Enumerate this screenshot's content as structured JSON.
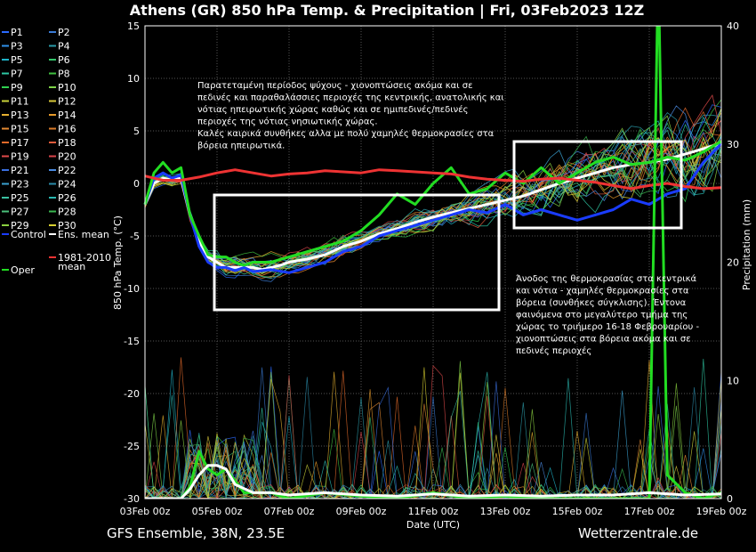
{
  "chart_data": {
    "type": "line",
    "title": "Athens  (GR)  850 hPa Temp. & Precipitation | Fri, 03Feb2023 12Z",
    "xlabel": "Date (UTC)",
    "ylabel": "850 hPa Temp. (°C)",
    "y2label": "Precipitation (mm)",
    "ylim": [
      -30,
      15
    ],
    "y2lim": [
      0,
      40
    ],
    "x_ticks": [
      "03Feb 00z",
      "05Feb 00z",
      "07Feb 00z",
      "09Feb 00z",
      "11Feb 00z",
      "13Feb 00z",
      "15Feb 00z",
      "17Feb 00z",
      "19Feb 00z"
    ],
    "y_ticks": [
      15,
      10,
      5,
      0,
      -5,
      -10,
      -15,
      -20,
      -25,
      -30
    ],
    "y2_ticks": [
      40,
      30,
      20,
      10,
      0
    ],
    "x_range_days": [
      0,
      16
    ],
    "grid": true,
    "legend_position": "left",
    "legend": [
      {
        "label": "P1",
        "color": "#2a6aff"
      },
      {
        "label": "P2",
        "color": "#3a7bd5"
      },
      {
        "label": "P3",
        "color": "#2f8fe8"
      },
      {
        "label": "P4",
        "color": "#2a9aa8"
      },
      {
        "label": "P5",
        "color": "#1fb3c9"
      },
      {
        "label": "P6",
        "color": "#33c56a"
      },
      {
        "label": "P7",
        "color": "#2ec7a3"
      },
      {
        "label": "P8",
        "color": "#3fbf3f"
      },
      {
        "label": "P9",
        "color": "#2fd050"
      },
      {
        "label": "P10",
        "color": "#7ed348"
      },
      {
        "label": "P11",
        "color": "#c9d23a"
      },
      {
        "label": "P12",
        "color": "#d8c83a"
      },
      {
        "label": "P13",
        "color": "#e5b030"
      },
      {
        "label": "P14",
        "color": "#e59a2a"
      },
      {
        "label": "P15",
        "color": "#e58a32"
      },
      {
        "label": "P16",
        "color": "#d97a28"
      },
      {
        "label": "P17",
        "color": "#e56a2a"
      },
      {
        "label": "P18",
        "color": "#dd5a3a"
      },
      {
        "label": "P19",
        "color": "#e04a4a"
      },
      {
        "label": "P20",
        "color": "#d8444a"
      },
      {
        "label": "P21",
        "color": "#3a6fe0"
      },
      {
        "label": "P22",
        "color": "#4a8ae0"
      },
      {
        "label": "P23",
        "color": "#3aa0d0"
      },
      {
        "label": "P24",
        "color": "#2a8aa8"
      },
      {
        "label": "P25",
        "color": "#3ac0a0"
      },
      {
        "label": "P26",
        "color": "#2ab8b0"
      },
      {
        "label": "P27",
        "color": "#4ac07a"
      },
      {
        "label": "P28",
        "color": "#3ab850"
      },
      {
        "label": "P29",
        "color": "#8ad040"
      },
      {
        "label": "P30",
        "color": "#d8d030"
      },
      {
        "label": "Control",
        "color": "#1a3cff"
      },
      {
        "label": "Ens. mean",
        "color": "#ffffff"
      },
      {
        "label": "Oper",
        "color": "#22dd22"
      },
      {
        "label": "1981-2010 mean",
        "color": "#ee3333"
      }
    ],
    "series": [
      {
        "name": "Ens. mean",
        "color": "#ffffff",
        "x": [
          0,
          0.25,
          0.5,
          0.75,
          1,
          1.25,
          1.5,
          1.75,
          2,
          2.25,
          2.5,
          2.75,
          3,
          3.25,
          3.5,
          3.75,
          4,
          4.5,
          5,
          5.5,
          6,
          6.5,
          7,
          7.5,
          8,
          8.5,
          9,
          9.5,
          10,
          10.5,
          11,
          11.5,
          12,
          12.5,
          13,
          13.5,
          14,
          14.5,
          15,
          15.5,
          16
        ],
        "values": [
          -2,
          0,
          0.5,
          0.3,
          0.5,
          -3,
          -5.5,
          -7,
          -7.5,
          -8,
          -8,
          -8,
          -8,
          -8.2,
          -8,
          -7.8,
          -7.5,
          -7.2,
          -6.8,
          -6,
          -5.5,
          -4.8,
          -4.3,
          -3.7,
          -3.2,
          -2.8,
          -2.4,
          -2,
          -1.6,
          -1.2,
          -0.6,
          0,
          0.5,
          1,
          1.5,
          1.8,
          2,
          2.3,
          2.8,
          3.3,
          3.8
        ]
      },
      {
        "name": "Control",
        "color": "#1a3cff",
        "x": [
          0,
          0.25,
          0.5,
          0.75,
          1,
          1.25,
          1.5,
          1.75,
          2,
          2.25,
          2.5,
          2.75,
          3,
          3.5,
          4,
          4.5,
          5,
          5.5,
          6,
          6.5,
          7,
          7.5,
          8,
          8.5,
          9,
          9.5,
          10,
          10.5,
          11,
          11.5,
          12,
          12.5,
          13,
          13.5,
          14,
          14.5,
          15,
          15.5,
          16
        ],
        "values": [
          -2,
          0.5,
          1,
          0.5,
          0.8,
          -3,
          -6,
          -7.5,
          -8,
          -8,
          -8.3,
          -8,
          -8.4,
          -8.2,
          -8.5,
          -8,
          -7.5,
          -6.5,
          -6,
          -5,
          -4.5,
          -4,
          -3.5,
          -3,
          -2.5,
          -2.8,
          -2,
          -3,
          -2.5,
          -3,
          -3.5,
          -3,
          -2.5,
          -1.5,
          -2,
          -1,
          -0.5,
          2,
          3.8
        ]
      },
      {
        "name": "Oper",
        "color": "#22dd22",
        "x": [
          0,
          0.25,
          0.5,
          0.75,
          1,
          1.25,
          1.5,
          1.75,
          2,
          2.25,
          2.5,
          2.75,
          3,
          3.5,
          4,
          4.5,
          5,
          5.5,
          6,
          6.5,
          7,
          7.5,
          8,
          8.5,
          9,
          9.5,
          10,
          10.5,
          11,
          11.5,
          12,
          12.5,
          13,
          13.5,
          14,
          14.5,
          15,
          15.5,
          16
        ],
        "values": [
          -2,
          1,
          2,
          1,
          1.5,
          -3,
          -5,
          -6.8,
          -7,
          -7,
          -7.5,
          -7.8,
          -7.5,
          -7.5,
          -7,
          -6.5,
          -6,
          -5.5,
          -4.5,
          -3,
          -1,
          -2,
          0,
          1.5,
          -1,
          -0.5,
          1,
          0,
          1.5,
          0,
          1,
          2,
          2.5,
          1.8,
          2,
          2.5,
          2.2,
          3,
          4
        ]
      },
      {
        "name": "1981-2010 mean",
        "color": "#ee3333",
        "x": [
          0,
          0.5,
          1,
          1.5,
          2,
          2.5,
          3,
          3.5,
          4,
          4.5,
          5,
          5.5,
          6,
          6.5,
          7,
          7.5,
          8,
          8.5,
          9,
          9.5,
          10,
          10.5,
          11,
          11.5,
          12,
          12.5,
          13,
          13.5,
          14,
          14.5,
          15,
          15.5,
          16
        ],
        "values": [
          0.7,
          0.3,
          0.3,
          0.6,
          1,
          1.3,
          1,
          0.7,
          0.9,
          1,
          1.2,
          1.1,
          1,
          1.3,
          1.2,
          1.1,
          1,
          0.9,
          0.6,
          0.4,
          0.3,
          0.2,
          0.4,
          0.5,
          0.3,
          0.1,
          -0.2,
          -0.5,
          -0.2,
          0,
          -0.3,
          -0.5,
          -0.4
        ]
      }
    ],
    "precipitation": [
      {
        "name": "Oper",
        "color": "#22dd22",
        "x": [
          0,
          1,
          1.25,
          1.5,
          1.75,
          2,
          2.25,
          2.5,
          2.75,
          3,
          3.5,
          4,
          5,
          6,
          7,
          8,
          9,
          10,
          11,
          12,
          12.5,
          13,
          14,
          14.25,
          14.5,
          15,
          15.5,
          16
        ],
        "values": [
          0,
          0,
          1,
          4,
          2.5,
          2,
          2.5,
          1.5,
          0.5,
          0.5,
          0.5,
          0,
          0.5,
          0.2,
          0,
          0.5,
          0,
          0.2,
          0,
          0,
          0,
          0,
          0,
          45,
          2,
          0.5,
          0,
          0.5
        ]
      },
      {
        "name": "Ens. mean",
        "color": "#ffffff",
        "x": [
          0,
          1,
          1.25,
          1.5,
          1.75,
          2,
          2.25,
          2.5,
          3,
          3.5,
          4,
          5,
          6,
          7,
          8,
          9,
          10,
          11,
          12,
          13,
          14,
          15,
          16
        ],
        "values": [
          0,
          0,
          0.8,
          2,
          2.8,
          2.8,
          2.5,
          1.2,
          0.5,
          0.5,
          0.3,
          0.5,
          0.3,
          0.2,
          0.4,
          0.2,
          0.3,
          0.2,
          0.3,
          0.3,
          0.5,
          0.3,
          0.4
        ]
      }
    ],
    "annotations": [
      "Παρατεταμένη περίοδος ψύχους - χιονοπτώσεις ακόμα και σε",
      "πεδινές και παραθαλάσσιες περιοχές της κεντρικής, ανατολικής και",
      "νότιας ηπειρωτικής χώρας καθώς και σε ημιπεδινές/πεδινές",
      "περιοχές της νότιας νησιωτικής χώρας.",
      "Καλές καιρικά συνθήκες αλλα με πολύ χαμηλές θερμοκρασίες στα",
      "βόρεια ηπειρωτικά."
    ],
    "annotations2": [
      "Άνοδος της θερμοκρασίας στα κεντρικά",
      "και νότια - χαμηλές θερμοκρασίες στα",
      "βόρεια (συνθήκες σύγκλισης). Έντονα",
      "φαινόμενα στο μεγαλύτερο τμήμα της",
      "χώρας το τριήμερο 16-18 Φεβρουαρίου -",
      "χιονοπτώσεις στα βόρεια ακόμα και σε",
      "πεδινές περιοχές"
    ]
  },
  "footer": {
    "left": "GFS Ensemble, 38N, 23.5E",
    "right": "Wetterzentrale.de"
  }
}
